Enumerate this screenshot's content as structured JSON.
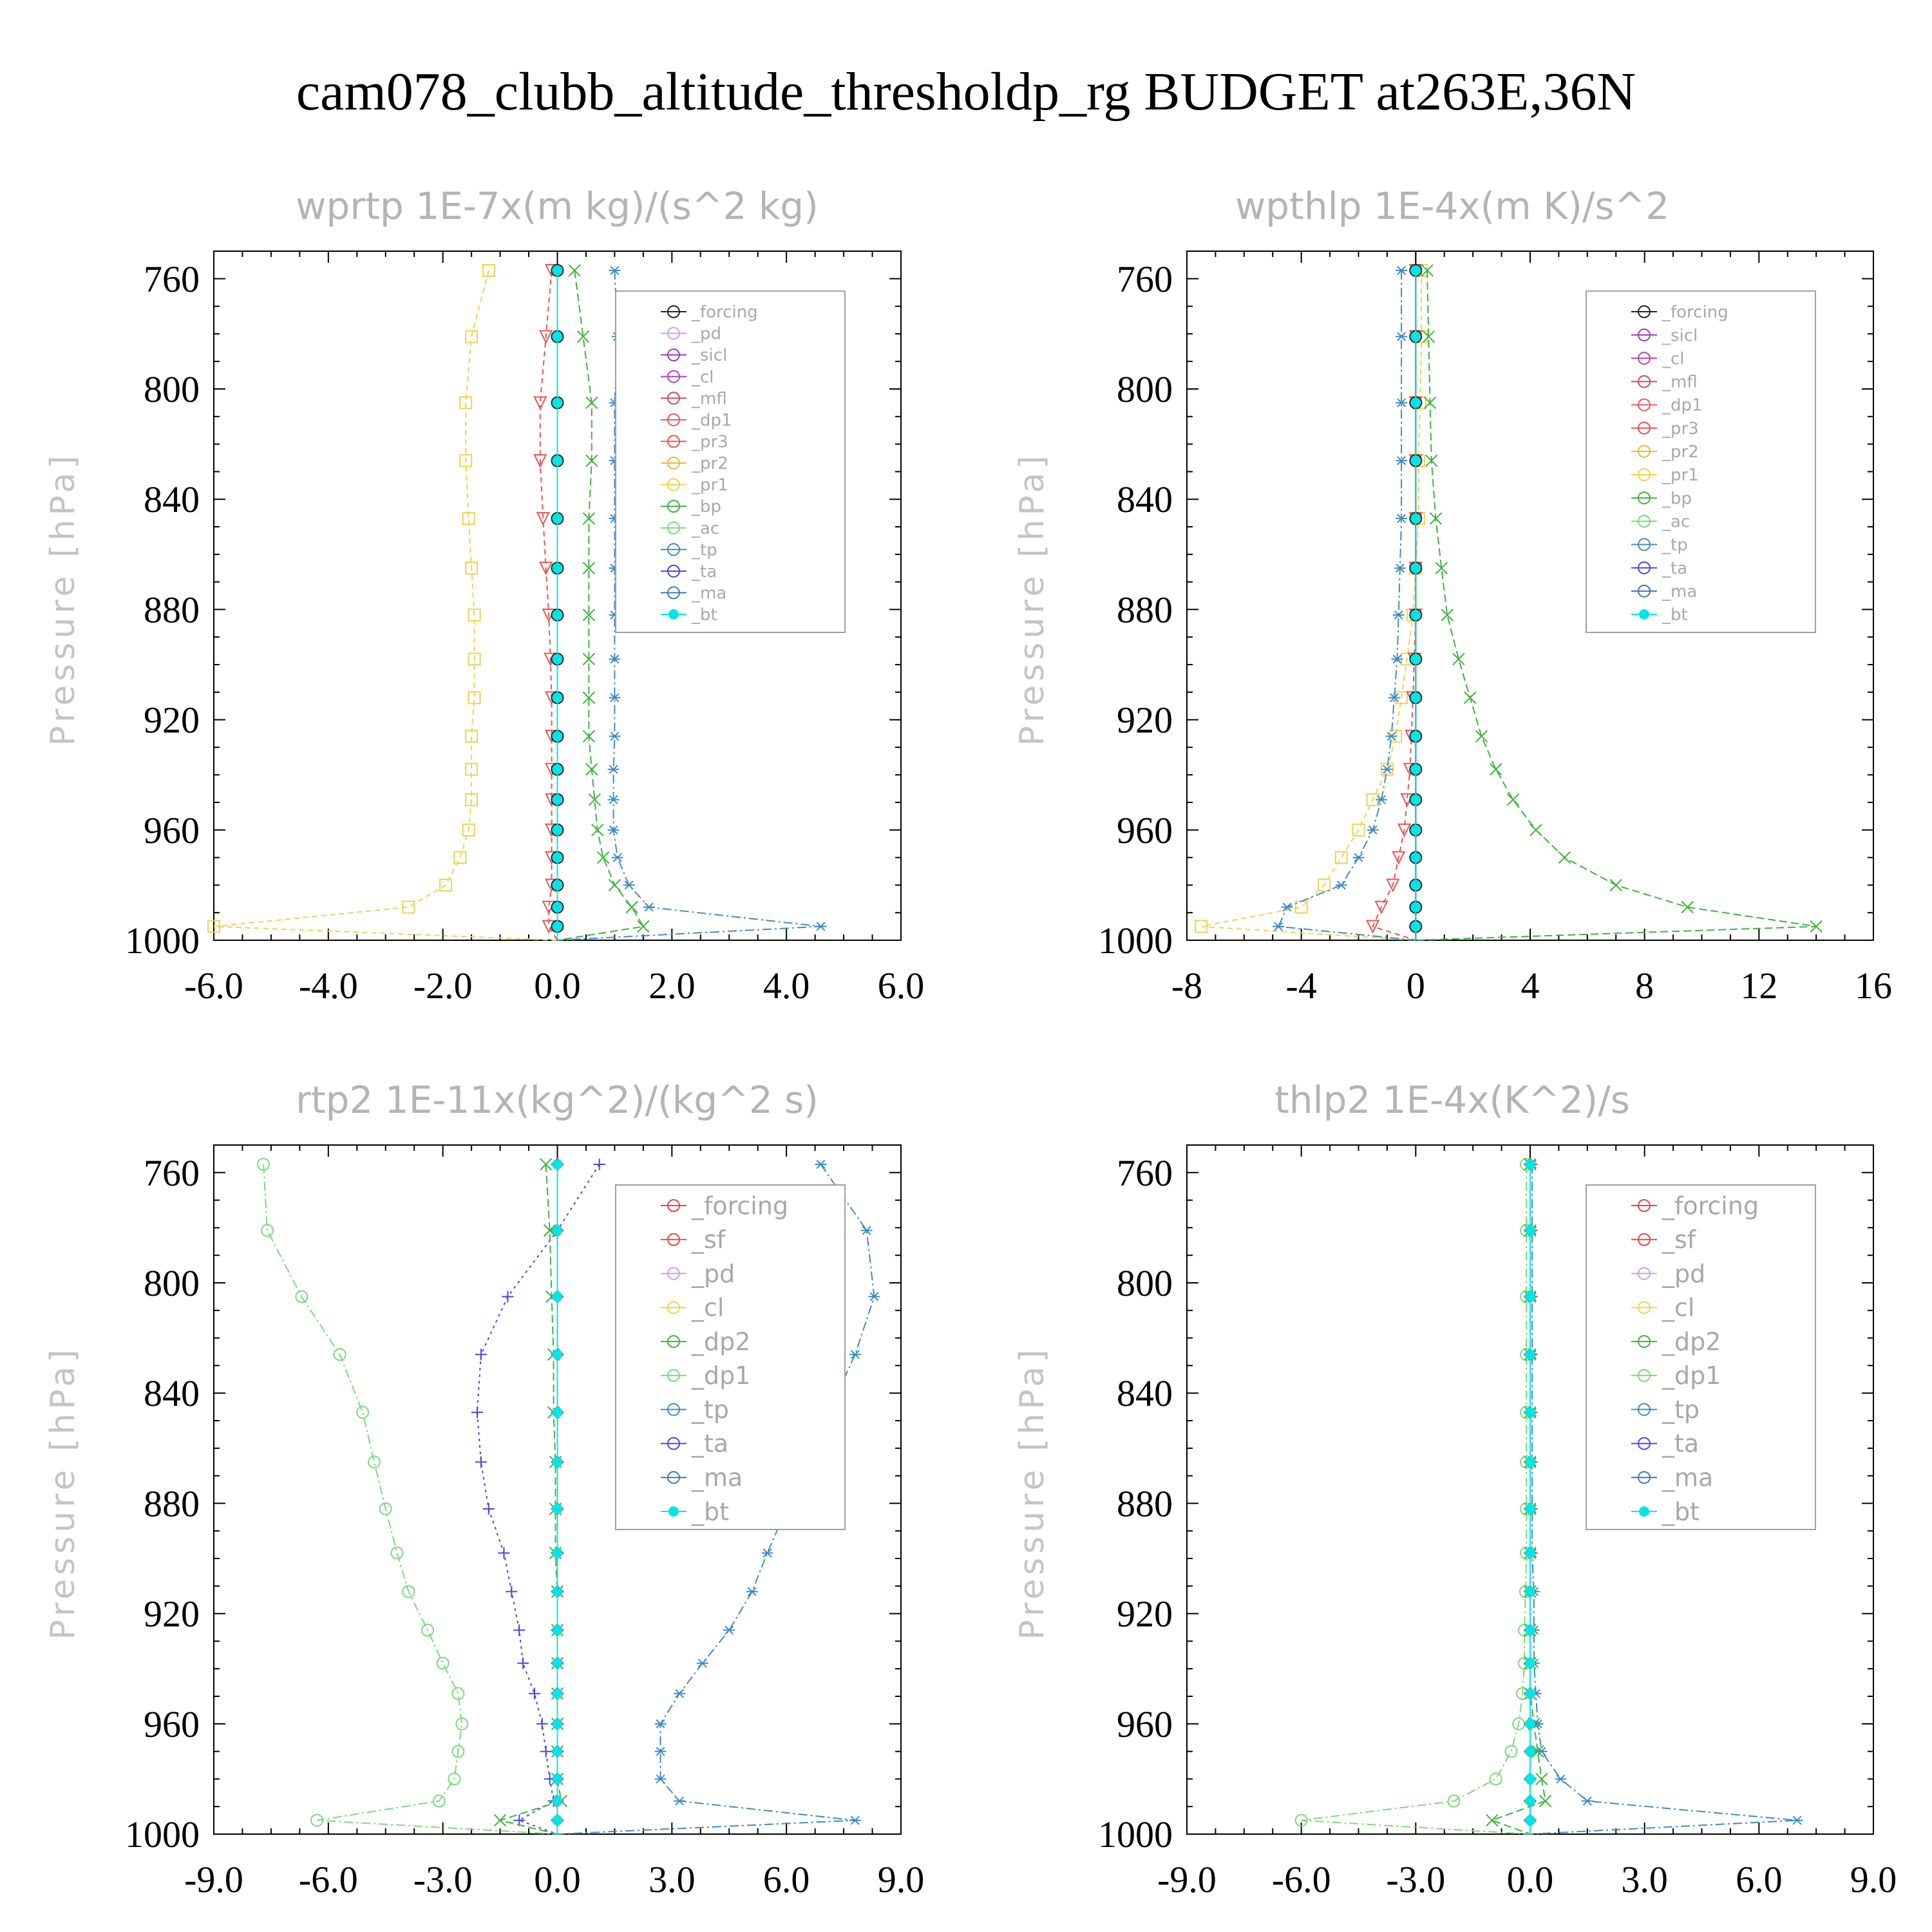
{
  "title": "cam078_clubb_altitude_thresholdp_rg  BUDGET at263E,36N",
  "colors": {
    "forcing": "#222222",
    "pd": "#c8a0e6",
    "sicl": "#9a3cc8",
    "cl": "#c03cb4",
    "mfl": "#d24664",
    "dp1": "#e65a5a",
    "pr3": "#f05050",
    "pr2": "#f0b43c",
    "pr1": "#f0d24a",
    "bp": "#3cb43c",
    "ac": "#78dc78",
    "tp": "#3c8cc8",
    "ta": "#4646e6",
    "ma": "#3c78b4",
    "bt": "#00e6e6",
    "f_red": "#e64646",
    "sf": "#e64646",
    "cl_y": "#f0d24a",
    "dp2": "#3cb43c",
    "dp1g": "#78dc78"
  },
  "chart_data": [
    {
      "type": "line",
      "title": "wprtp  1E-7x(m kg)/(s^2 kg)",
      "ylabel": "Pressure [hPa]",
      "xlim": [
        -6,
        6
      ],
      "ylim": [
        750,
        1000
      ],
      "yticks": [
        "760",
        "800",
        "840",
        "880",
        "920",
        "960",
        "1000"
      ],
      "xticks": [
        "-6.0",
        "-4.0",
        "-2.0",
        "0.0",
        "2.0",
        "4.0",
        "6.0"
      ],
      "levels": [
        757,
        781,
        805,
        826,
        847,
        865,
        882,
        898,
        912,
        926,
        938,
        949,
        960,
        970,
        980,
        988,
        995,
        1000
      ],
      "legend": [
        "_forcing",
        "_pd",
        "_sicl",
        "_cl",
        "_mfl",
        "_dp1",
        "_pr3",
        "_pr2",
        "_pr1",
        "_bp",
        "_ac",
        "_tp",
        "_ta",
        "_ma",
        "_bt"
      ],
      "series": [
        {
          "name": "_pr1",
          "color": "pr1",
          "marker": "square",
          "dash": "8,6",
          "values": [
            -1.2,
            -1.5,
            -1.6,
            -1.6,
            -1.55,
            -1.5,
            -1.45,
            -1.45,
            -1.45,
            -1.5,
            -1.5,
            -1.5,
            -1.55,
            -1.7,
            -1.95,
            -2.6,
            -6.0,
            0.0
          ]
        },
        {
          "name": "_pr3",
          "color": "pr3",
          "marker": "tri-down",
          "dash": "8,6",
          "values": [
            -0.1,
            -0.2,
            -0.3,
            -0.3,
            -0.25,
            -0.2,
            -0.15,
            -0.12,
            -0.1,
            -0.1,
            -0.1,
            -0.1,
            -0.1,
            -0.1,
            -0.1,
            -0.15,
            -0.15,
            0.0
          ]
        },
        {
          "name": "_bp",
          "color": "bp",
          "marker": "x",
          "dash": "12,6",
          "values": [
            0.3,
            0.45,
            0.6,
            0.6,
            0.55,
            0.55,
            0.55,
            0.55,
            0.55,
            0.55,
            0.6,
            0.65,
            0.7,
            0.8,
            1.0,
            1.3,
            1.5,
            0.0
          ]
        },
        {
          "name": "_tp",
          "color": "tp",
          "marker": "asterisk",
          "dash": "14,5,3,5",
          "values": [
            1.0,
            1.05,
            1.0,
            1.0,
            1.0,
            1.0,
            1.0,
            1.0,
            1.0,
            1.0,
            0.98,
            0.98,
            0.98,
            1.05,
            1.25,
            1.6,
            4.6,
            0.0
          ]
        },
        {
          "name": "_forcing",
          "color": "forcing",
          "marker": "circle",
          "dash": "",
          "values": [
            0,
            0,
            0,
            0,
            0,
            0,
            0,
            0,
            0,
            0,
            0,
            0,
            0,
            0,
            0,
            0,
            0,
            0
          ]
        },
        {
          "name": "_bt",
          "color": "bt",
          "marker": "dot",
          "dash": "",
          "values": [
            0,
            0,
            0,
            0,
            0,
            0,
            0,
            0,
            0,
            0,
            0,
            0,
            0,
            0,
            0,
            0,
            0,
            0
          ]
        }
      ]
    },
    {
      "type": "line",
      "title": "wpthlp  1E-4x(m K)/s^2",
      "ylabel": "Pressure [hPa]",
      "xlim": [
        -8,
        16
      ],
      "ylim": [
        750,
        1000
      ],
      "yticks": [
        "760",
        "800",
        "840",
        "880",
        "920",
        "960",
        "1000"
      ],
      "xticks": [
        "-8",
        "-4",
        "0",
        "4",
        "8",
        "12",
        "16"
      ],
      "levels": [
        757,
        781,
        805,
        826,
        847,
        865,
        882,
        898,
        912,
        926,
        938,
        949,
        960,
        970,
        980,
        988,
        995,
        1000
      ],
      "legend": [
        "_forcing",
        "_sicl",
        "_cl",
        "_mfl",
        "_dp1",
        "_pr3",
        "_pr2",
        "_pr1",
        "_bp",
        "_ac",
        "_tp",
        "_ta",
        "_ma",
        "_bt"
      ],
      "series": [
        {
          "name": "_pr1",
          "color": "pr1",
          "marker": "square",
          "dash": "8,6",
          "values": [
            0.2,
            0.2,
            0.15,
            0.1,
            0.1,
            0.0,
            -0.1,
            -0.3,
            -0.5,
            -0.7,
            -1.0,
            -1.5,
            -2.0,
            -2.6,
            -3.2,
            -4.0,
            -7.5,
            0.0
          ]
        },
        {
          "name": "_pr3",
          "color": "pr3",
          "marker": "tri-down",
          "dash": "8,6",
          "values": [
            0.0,
            0.0,
            0.0,
            0.0,
            0.0,
            0.0,
            0.0,
            -0.05,
            -0.1,
            -0.15,
            -0.2,
            -0.3,
            -0.4,
            -0.6,
            -0.8,
            -1.2,
            -1.5,
            0.0
          ]
        },
        {
          "name": "_bp",
          "color": "bp",
          "marker": "x",
          "dash": "12,6",
          "values": [
            0.4,
            0.45,
            0.5,
            0.55,
            0.7,
            0.9,
            1.1,
            1.5,
            1.9,
            2.3,
            2.8,
            3.4,
            4.2,
            5.2,
            7.0,
            9.5,
            14.0,
            0.0
          ]
        },
        {
          "name": "_tp",
          "color": "tp",
          "marker": "asterisk",
          "dash": "14,5,3,5",
          "values": [
            -0.5,
            -0.5,
            -0.5,
            -0.5,
            -0.5,
            -0.55,
            -0.6,
            -0.65,
            -0.75,
            -0.85,
            -1.0,
            -1.2,
            -1.5,
            -2.0,
            -2.6,
            -4.5,
            -4.8,
            0.0
          ]
        },
        {
          "name": "_forcing",
          "color": "forcing",
          "marker": "circle",
          "dash": "",
          "values": [
            0,
            0,
            0,
            0,
            0,
            0,
            0,
            0,
            0,
            0,
            0,
            0,
            0,
            0,
            0,
            0,
            0,
            0
          ]
        },
        {
          "name": "_bt",
          "color": "bt",
          "marker": "dot",
          "dash": "",
          "values": [
            0,
            0,
            0,
            0,
            0,
            0,
            0,
            0,
            0,
            0,
            0,
            0,
            0,
            0,
            0,
            0,
            0,
            0
          ]
        }
      ]
    },
    {
      "type": "line",
      "title": "rtp2  1E-11x(kg^2)/(kg^2 s)",
      "ylabel": "Pressure [hPa]",
      "xlim": [
        -9,
        9
      ],
      "ylim": [
        750,
        1000
      ],
      "yticks": [
        "760",
        "800",
        "840",
        "880",
        "920",
        "960",
        "1000"
      ],
      "xticks": [
        "-9.0",
        "-6.0",
        "-3.0",
        "0.0",
        "3.0",
        "6.0",
        "9.0"
      ],
      "levels": [
        757,
        781,
        805,
        826,
        847,
        865,
        882,
        898,
        912,
        926,
        938,
        949,
        960,
        970,
        980,
        988,
        995,
        1000
      ],
      "legend": [
        "_forcing",
        "_sf",
        "_pd",
        "_cl",
        "_dp2",
        "_dp1",
        "_tp",
        "_ta",
        "_ma",
        "_bt"
      ],
      "series": [
        {
          "name": "_dp1",
          "color": "dp1g",
          "marker": "circle",
          "dash": "14,5,3,5",
          "values": [
            -7.7,
            -7.6,
            -6.7,
            -5.7,
            -5.1,
            -4.8,
            -4.5,
            -4.2,
            -3.9,
            -3.4,
            -3.0,
            -2.6,
            -2.5,
            -2.6,
            -2.7,
            -3.1,
            -6.3,
            0.0
          ]
        },
        {
          "name": "_ta",
          "color": "ta",
          "marker": "plus",
          "dash": "4,6",
          "values": [
            1.1,
            0.0,
            -1.3,
            -2.0,
            -2.1,
            -2.0,
            -1.8,
            -1.4,
            -1.2,
            -1.0,
            -0.9,
            -0.6,
            -0.4,
            -0.3,
            -0.2,
            -0.1,
            -1.0,
            0.0
          ]
        },
        {
          "name": "_tp",
          "color": "tp",
          "marker": "asterisk",
          "dash": "14,5,3,5",
          "values": [
            6.9,
            8.1,
            8.3,
            7.8,
            7.1,
            6.9,
            6.0,
            5.5,
            5.1,
            4.5,
            3.8,
            3.2,
            2.7,
            2.7,
            2.7,
            3.2,
            7.8,
            0.0
          ]
        },
        {
          "name": "_dp2",
          "color": "dp2",
          "marker": "x",
          "dash": "12,6",
          "values": [
            -0.3,
            -0.2,
            -0.15,
            -0.1,
            -0.1,
            -0.05,
            -0.05,
            -0.05,
            0,
            0,
            0,
            0,
            0,
            0,
            0,
            0.1,
            -1.5,
            0.0
          ]
        },
        {
          "name": "_forcing",
          "color": "f_red",
          "marker": "diamond",
          "dash": "",
          "values": [
            0,
            0,
            0,
            0,
            0,
            0,
            0,
            0,
            0,
            0,
            0,
            0,
            0,
            0,
            0,
            0,
            0,
            0
          ]
        },
        {
          "name": "_bt",
          "color": "bt",
          "marker": "dot",
          "dash": "",
          "values": [
            0,
            0,
            0,
            0,
            0,
            0,
            0,
            0,
            0,
            0,
            0,
            0,
            0,
            0,
            0,
            0,
            0,
            0
          ]
        }
      ]
    },
    {
      "type": "line",
      "title": "thlp2  1E-4x(K^2)/s",
      "ylabel": "Pressure [hPa]",
      "xlim": [
        -9,
        9
      ],
      "ylim": [
        750,
        1000
      ],
      "yticks": [
        "760",
        "800",
        "840",
        "880",
        "920",
        "960",
        "1000"
      ],
      "xticks": [
        "-9.0",
        "-6.0",
        "-3.0",
        "0.0",
        "3.0",
        "6.0",
        "9.0"
      ],
      "levels": [
        757,
        781,
        805,
        826,
        847,
        865,
        882,
        898,
        912,
        926,
        938,
        949,
        960,
        970,
        980,
        988,
        995,
        1000
      ],
      "legend": [
        "_forcing",
        "_sf",
        "_pd",
        "_cl",
        "_dp2",
        "_dp1",
        "_tp",
        "_ta",
        "_ma",
        "_bt"
      ],
      "series": [
        {
          "name": "_dp1",
          "color": "dp1g",
          "marker": "circle",
          "dash": "14,5,3,5",
          "values": [
            -0.1,
            -0.1,
            -0.1,
            -0.1,
            -0.1,
            -0.1,
            -0.1,
            -0.1,
            -0.12,
            -0.15,
            -0.15,
            -0.2,
            -0.3,
            -0.5,
            -0.9,
            -2.0,
            -6.0,
            0.0
          ]
        },
        {
          "name": "_tp",
          "color": "tp",
          "marker": "asterisk",
          "dash": "14,5,3,5",
          "values": [
            0.05,
            0.05,
            0.05,
            0.05,
            0.05,
            0.05,
            0.05,
            0.05,
            0.1,
            0.1,
            0.1,
            0.15,
            0.2,
            0.3,
            0.8,
            1.5,
            7.0,
            0.0
          ]
        },
        {
          "name": "_dp2",
          "color": "dp2",
          "marker": "x",
          "dash": "12,6",
          "values": [
            0,
            0,
            0,
            0,
            0,
            0,
            0,
            0,
            0,
            0,
            0,
            0,
            0.1,
            0.2,
            0.3,
            0.4,
            -1.0,
            0.0
          ]
        },
        {
          "name": "_forcing",
          "color": "f_red",
          "marker": "diamond",
          "dash": "",
          "values": [
            0,
            0,
            0,
            0,
            0,
            0,
            0,
            0,
            0,
            0,
            0,
            0,
            0,
            0,
            0,
            0,
            0,
            0
          ]
        },
        {
          "name": "_bt",
          "color": "bt",
          "marker": "dot",
          "dash": "",
          "values": [
            0,
            0,
            0,
            0,
            0,
            0,
            0,
            0,
            0,
            0,
            0,
            0,
            0,
            0,
            0,
            0,
            0,
            0
          ]
        }
      ]
    }
  ]
}
